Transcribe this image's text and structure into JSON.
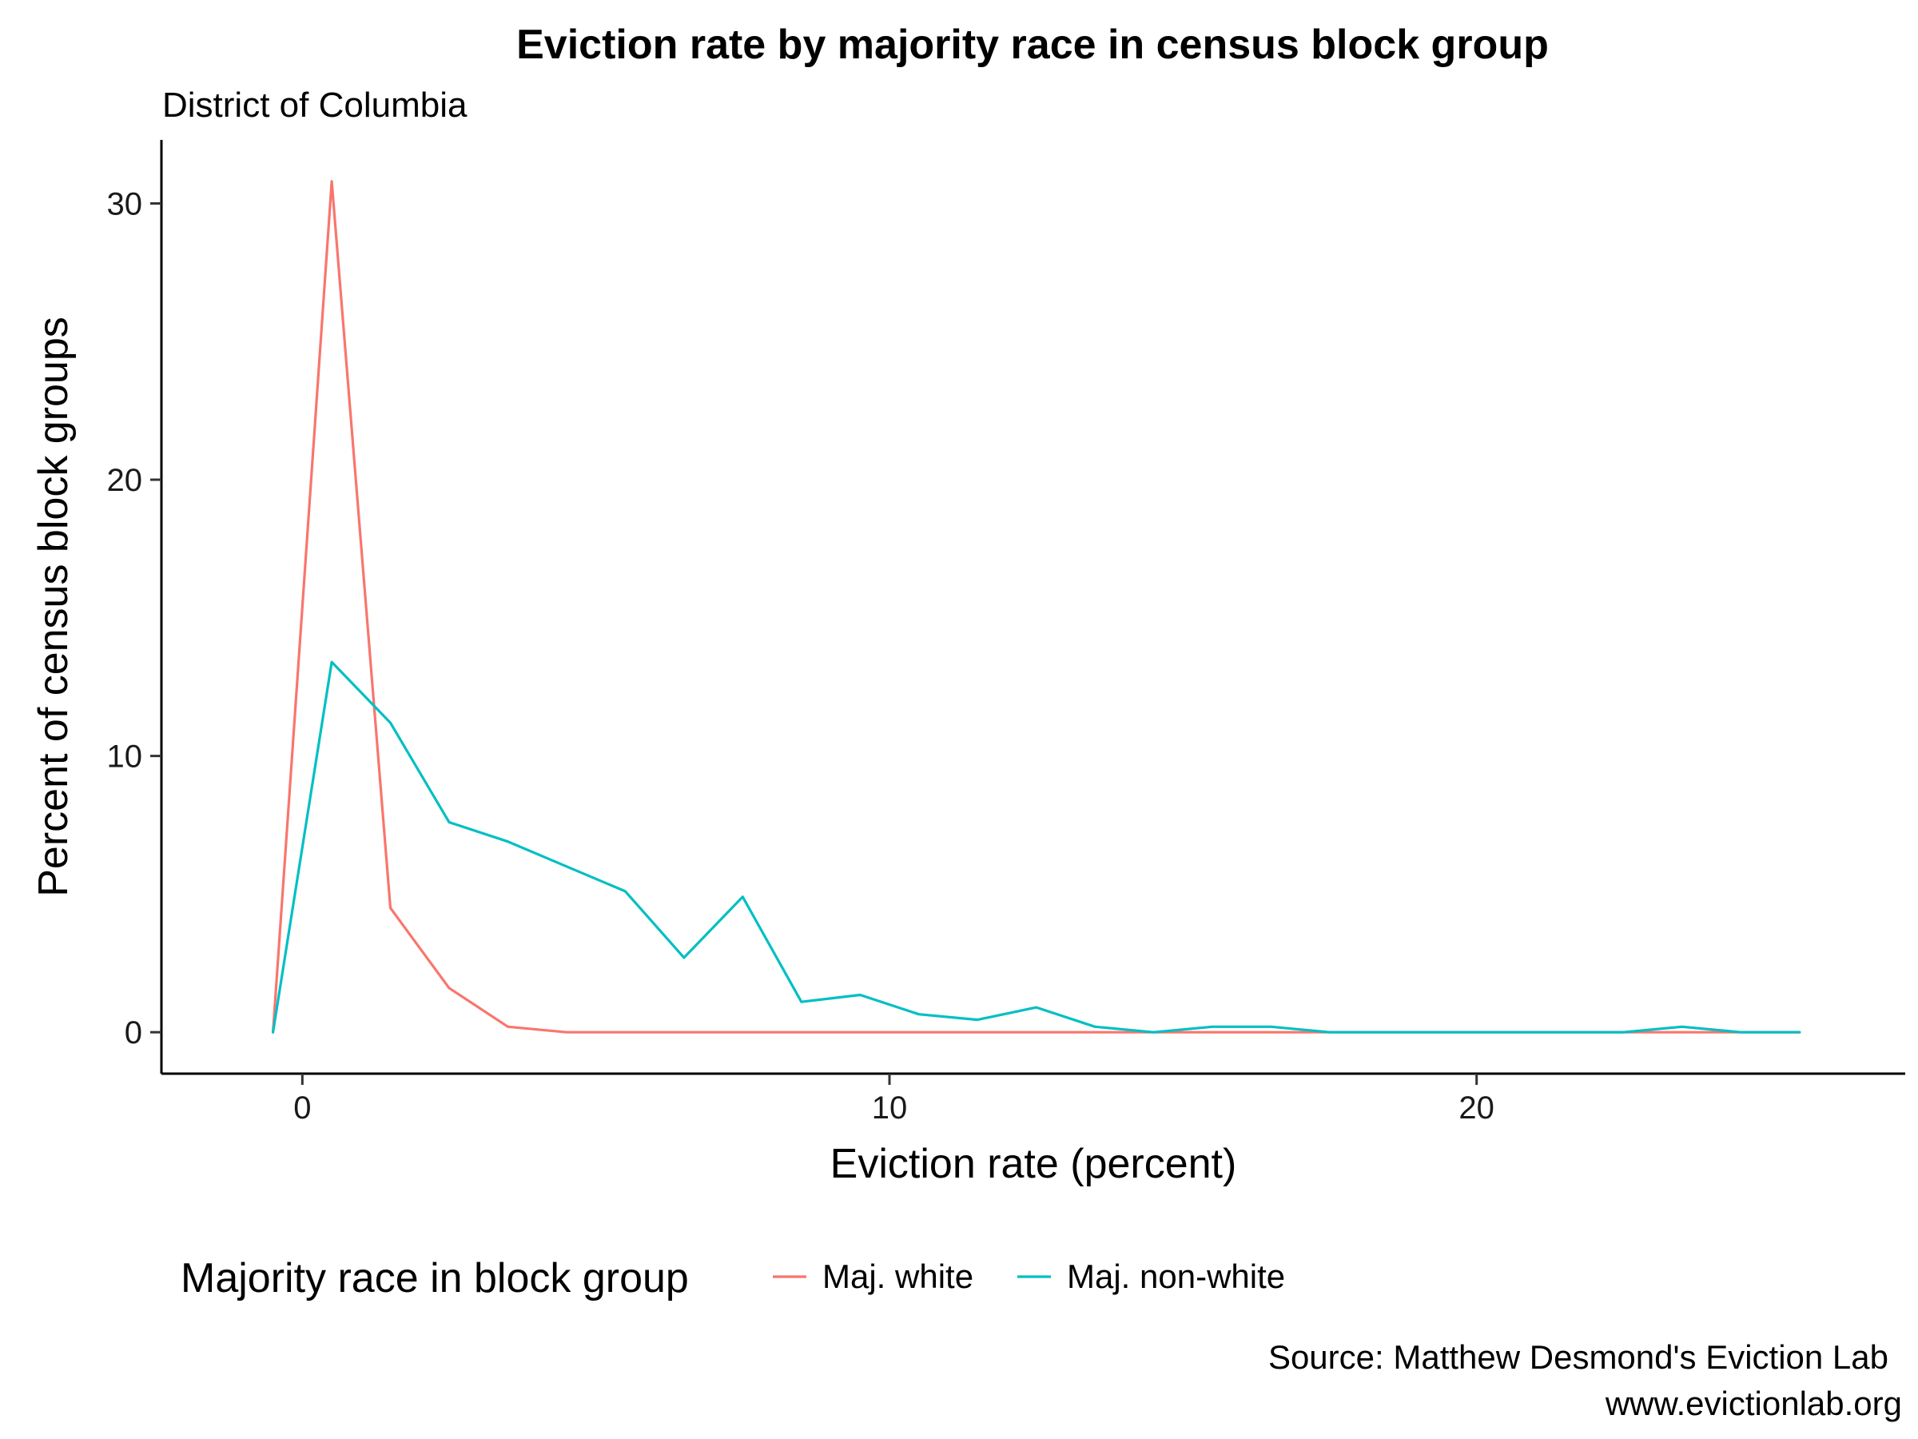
{
  "chart_data": {
    "type": "line",
    "title": "Eviction rate by majority race in census block group",
    "subtitle": "District of Columbia",
    "xlabel": "Eviction rate (percent)",
    "ylabel": "Percent of census block groups",
    "xlim": [
      -2.4,
      27.3
    ],
    "ylim": [
      -1.5,
      32.3
    ],
    "xticks": [
      0,
      10,
      20
    ],
    "yticks": [
      0,
      10,
      20,
      30
    ],
    "grid": false,
    "legend": {
      "title": "Majority race in block group",
      "position": "bottom"
    },
    "colors": {
      "white": "#F8766D",
      "nonwhite": "#00BFC4"
    },
    "x": [
      -0.5,
      0.5,
      1.5,
      2.5,
      3.5,
      4.5,
      5.5,
      6.5,
      7.5,
      8.5,
      9.5,
      10.5,
      11.5,
      12.5,
      13.5,
      14.5,
      15.5,
      16.5,
      17.5,
      18.5,
      19.5,
      20.5,
      21.5,
      22.5,
      23.5,
      24.5,
      25.5
    ],
    "series": [
      {
        "name": "Maj. white",
        "color": "#F8766D",
        "values": [
          0,
          30.8,
          4.5,
          1.6,
          0.2,
          0,
          0,
          0,
          0,
          0,
          0,
          0,
          0,
          0,
          0,
          0,
          0,
          0,
          0,
          0,
          0,
          0,
          0,
          0,
          0,
          0,
          0
        ]
      },
      {
        "name": "Maj. non-white",
        "color": "#00BFC4",
        "values": [
          0,
          13.4,
          11.2,
          7.6,
          6.9,
          6.0,
          5.1,
          2.7,
          4.9,
          1.1,
          1.35,
          0.65,
          0.45,
          0.9,
          0.2,
          0,
          0.2,
          0.2,
          0,
          0,
          0,
          0,
          0,
          0,
          0.2,
          0,
          0
        ]
      }
    ]
  },
  "caption": {
    "line1": "Source: Matthew Desmond's Eviction Lab",
    "line2": "www.evictionlab.org"
  }
}
